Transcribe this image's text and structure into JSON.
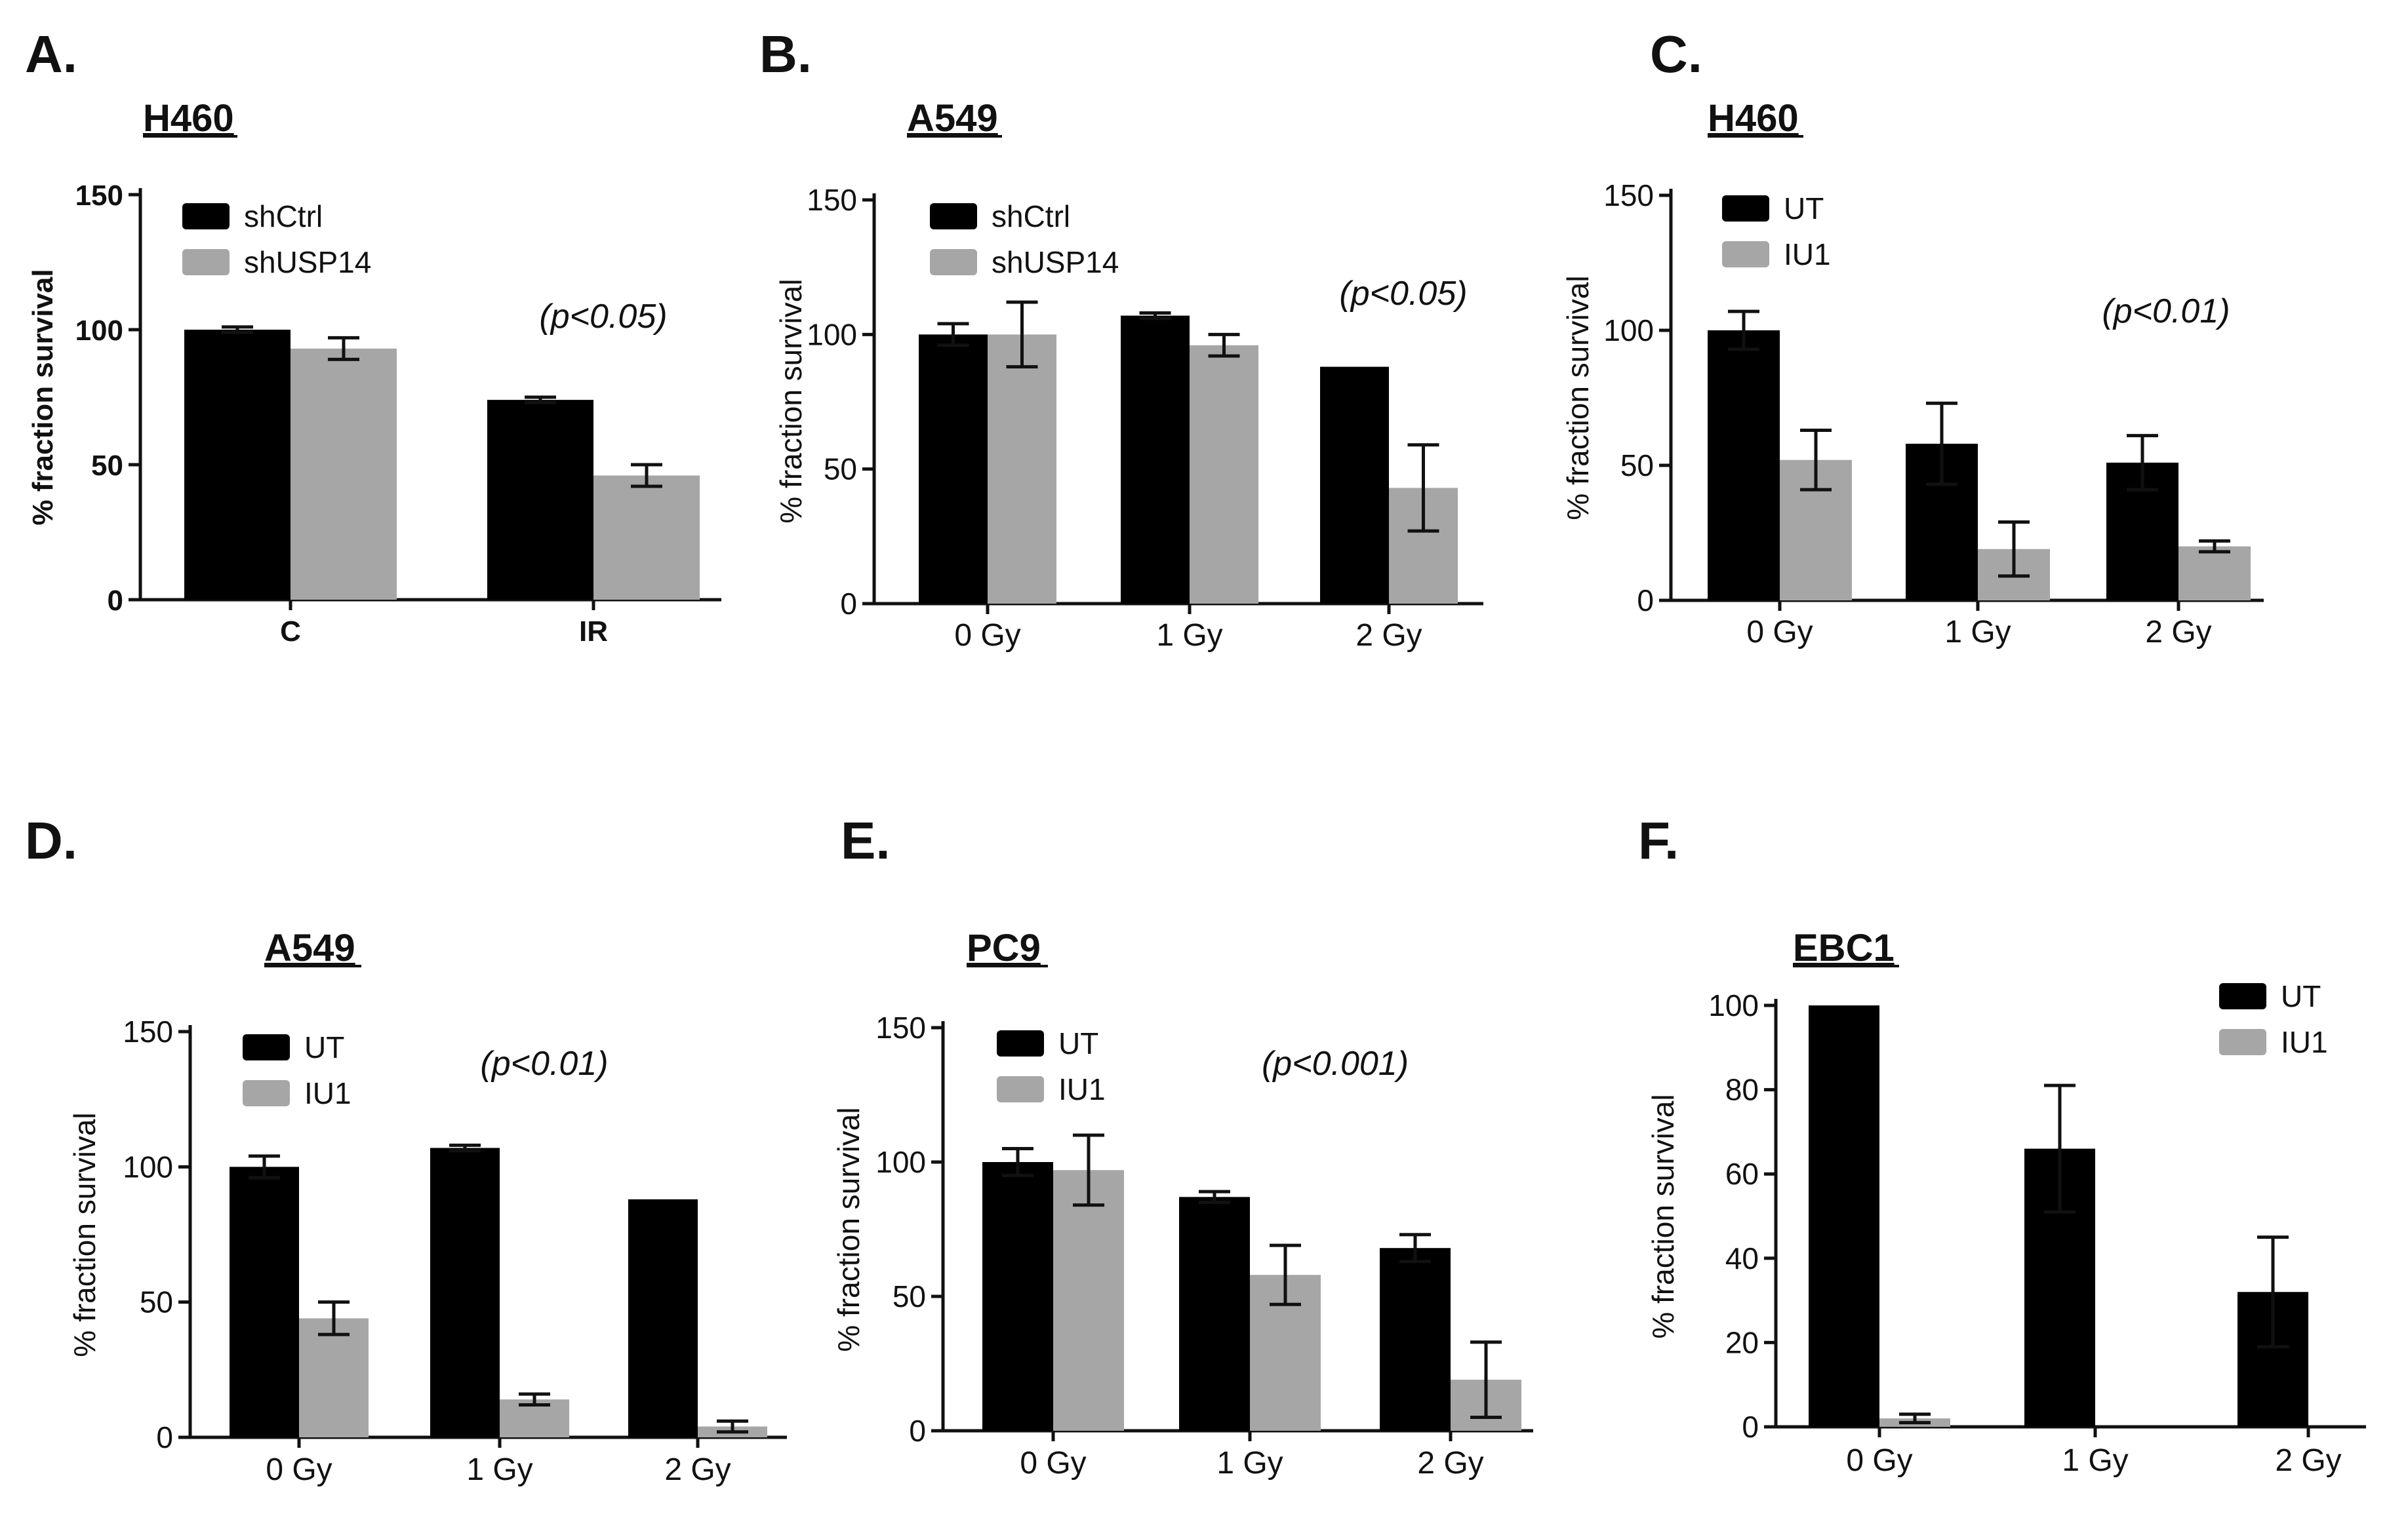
{
  "chart_data": [
    {
      "panel": "A.",
      "title": "H460",
      "type": "bar",
      "ylabel": "% fraction survival",
      "xlabel": "",
      "ylim": [
        0,
        150
      ],
      "yticks": [
        "0",
        "50",
        "100",
        "150"
      ],
      "categories": [
        "C",
        "IR"
      ],
      "series": [
        {
          "name": "shCtrl",
          "color": "#000000",
          "values": [
            100,
            74
          ],
          "errors": [
            1,
            1
          ]
        },
        {
          "name": "shUSP14",
          "color": "#a6a6a6",
          "values": [
            93,
            46
          ],
          "errors": [
            4,
            4
          ]
        }
      ],
      "annotation": "(p<0.05)",
      "legend": "top-left"
    },
    {
      "panel": "B.",
      "title": "A549",
      "type": "bar",
      "ylabel": "% fraction survival",
      "xlabel": "",
      "ylim": [
        0,
        150
      ],
      "yticks": [
        "0",
        "50",
        "100",
        "150"
      ],
      "categories": [
        "0 Gy",
        "1 Gy",
        "2 Gy"
      ],
      "series": [
        {
          "name": "shCtrl",
          "color": "#000000",
          "values": [
            100,
            107,
            88
          ],
          "errors": [
            4,
            1,
            0
          ]
        },
        {
          "name": "shUSP14",
          "color": "#a6a6a6",
          "values": [
            100,
            96,
            43
          ],
          "errors": [
            12,
            4,
            16
          ]
        }
      ],
      "annotation": "(p<0.05)",
      "legend": "top-left"
    },
    {
      "panel": "C.",
      "title": "H460",
      "type": "bar",
      "ylabel": "% fraction survival",
      "xlabel": "",
      "ylim": [
        0,
        150
      ],
      "yticks": [
        "0",
        "50",
        "100",
        "150"
      ],
      "categories": [
        "0 Gy",
        "1 Gy",
        "2 Gy"
      ],
      "series": [
        {
          "name": "UT",
          "color": "#000000",
          "values": [
            100,
            58,
            51
          ],
          "errors": [
            7,
            15,
            10
          ]
        },
        {
          "name": "IU1",
          "color": "#a6a6a6",
          "values": [
            52,
            19,
            20
          ],
          "errors": [
            11,
            10,
            2
          ]
        }
      ],
      "annotation": "(p<0.01)",
      "legend": "top-left"
    },
    {
      "panel": "D.",
      "title": "A549",
      "type": "bar",
      "ylabel": "% fraction survival",
      "xlabel": "",
      "ylim": [
        0,
        150
      ],
      "yticks": [
        "0",
        "50",
        "100",
        "150"
      ],
      "categories": [
        "0 Gy",
        "1 Gy",
        "2 Gy"
      ],
      "series": [
        {
          "name": "UT",
          "color": "#000000",
          "values": [
            100,
            107,
            88
          ],
          "errors": [
            4,
            1,
            0
          ]
        },
        {
          "name": "IU1",
          "color": "#a6a6a6",
          "values": [
            44,
            14,
            4
          ],
          "errors": [
            6,
            2,
            2
          ]
        }
      ],
      "annotation": "(p<0.01)",
      "legend": "top-left"
    },
    {
      "panel": "E.",
      "title": "PC9",
      "type": "bar",
      "ylabel": "% fraction survival",
      "xlabel": "",
      "ylim": [
        0,
        150
      ],
      "yticks": [
        "0",
        "50",
        "100",
        "150"
      ],
      "categories": [
        "0 Gy",
        "1 Gy",
        "2 Gy"
      ],
      "series": [
        {
          "name": "UT",
          "color": "#000000",
          "values": [
            100,
            87,
            68
          ],
          "errors": [
            5,
            2,
            5
          ]
        },
        {
          "name": "IU1",
          "color": "#a6a6a6",
          "values": [
            97,
            58,
            19
          ],
          "errors": [
            13,
            11,
            14
          ]
        }
      ],
      "annotation": "(p<0.001)",
      "legend": "top-left"
    },
    {
      "panel": "F.",
      "title": "EBC1",
      "type": "bar",
      "ylabel": "% fraction survival",
      "xlabel": "",
      "ylim": [
        0,
        100
      ],
      "yticks": [
        "0",
        "20",
        "40",
        "60",
        "80",
        "100"
      ],
      "categories": [
        "0 Gy",
        "1 Gy",
        "2 Gy"
      ],
      "series": [
        {
          "name": "UT",
          "color": "#000000",
          "values": [
            100,
            66,
            32
          ],
          "errors": [
            0,
            15,
            13
          ]
        },
        {
          "name": "IU1",
          "color": "#a6a6a6",
          "values": [
            2,
            0,
            0
          ],
          "errors": [
            1,
            0,
            0
          ]
        }
      ],
      "annotation": "",
      "legend": "top-right"
    }
  ]
}
